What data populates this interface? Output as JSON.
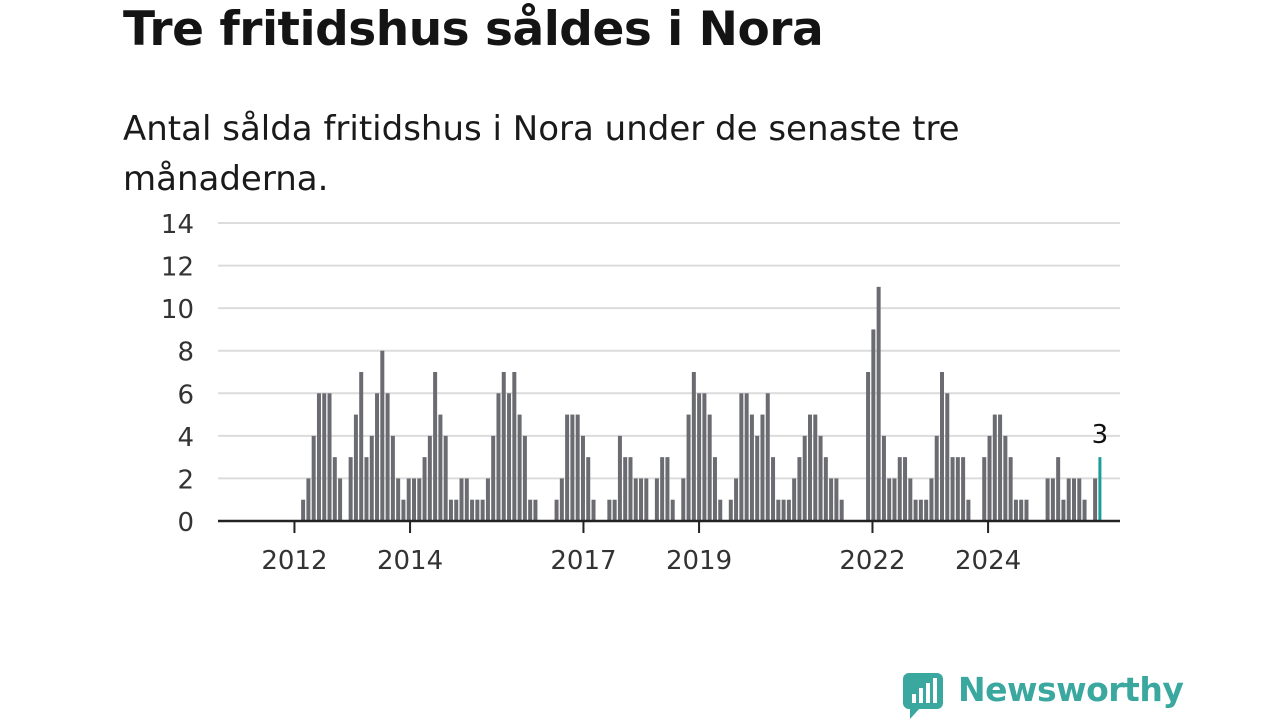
{
  "title": "Tre fritidshus såldes i Nora",
  "subtitle": "Antal sålda fritidshus i Nora under de senaste tre månaderna.",
  "brand": {
    "name": "Newsworthy",
    "color": "#3aa89f",
    "icon": "newsworthy-logo-icon"
  },
  "colors": {
    "bar": "#6b6b72",
    "highlight": "#1a9e9a",
    "grid": "#dcdcdc",
    "axis": "#222222"
  },
  "chart_data": {
    "type": "bar",
    "ylim": [
      0,
      14
    ],
    "yticks": [
      0,
      2,
      4,
      6,
      8,
      10,
      12,
      14
    ],
    "x_tick_labels": [
      "2012",
      "2014",
      "2017",
      "2019",
      "2022",
      "2024"
    ],
    "x_tick_years": [
      2012,
      2014,
      2017,
      2019,
      2022,
      2024
    ],
    "x_start_year": 2011.75,
    "x_end_year": 2026.0,
    "series": [
      {
        "values": [
          0,
          0,
          0,
          0,
          1,
          2,
          4,
          6,
          6,
          6,
          3,
          2,
          0,
          3,
          5,
          7,
          3,
          4,
          6,
          8,
          6,
          4,
          2,
          1,
          2,
          2,
          2,
          3,
          4,
          7,
          5,
          4,
          1,
          1,
          2,
          2,
          1,
          1,
          1,
          2,
          4,
          6,
          7,
          6,
          7,
          5,
          4,
          1,
          1,
          0,
          0,
          0,
          1,
          2,
          5,
          5,
          5,
          4,
          3,
          1,
          0,
          0,
          1,
          1,
          4,
          3,
          3,
          2,
          2,
          2,
          0,
          2,
          3,
          3,
          1,
          0,
          2,
          5,
          7,
          6,
          6,
          5,
          3,
          1,
          0,
          1,
          2,
          6,
          6,
          5,
          4,
          5,
          6,
          3,
          1,
          1,
          1,
          2,
          3,
          4,
          5,
          5,
          4,
          3,
          2,
          2,
          1,
          0,
          0,
          0,
          0,
          7,
          9,
          11,
          4,
          2,
          2,
          3,
          3,
          2,
          1,
          1,
          1,
          2,
          4,
          7,
          6,
          3,
          3,
          3,
          1,
          0,
          0,
          3,
          4,
          5,
          5,
          4,
          3,
          1,
          1,
          1,
          0,
          0,
          0,
          2,
          2,
          3,
          1,
          2,
          2,
          2,
          1,
          0,
          2,
          3
        ]
      }
    ],
    "last_value_label": "3"
  }
}
